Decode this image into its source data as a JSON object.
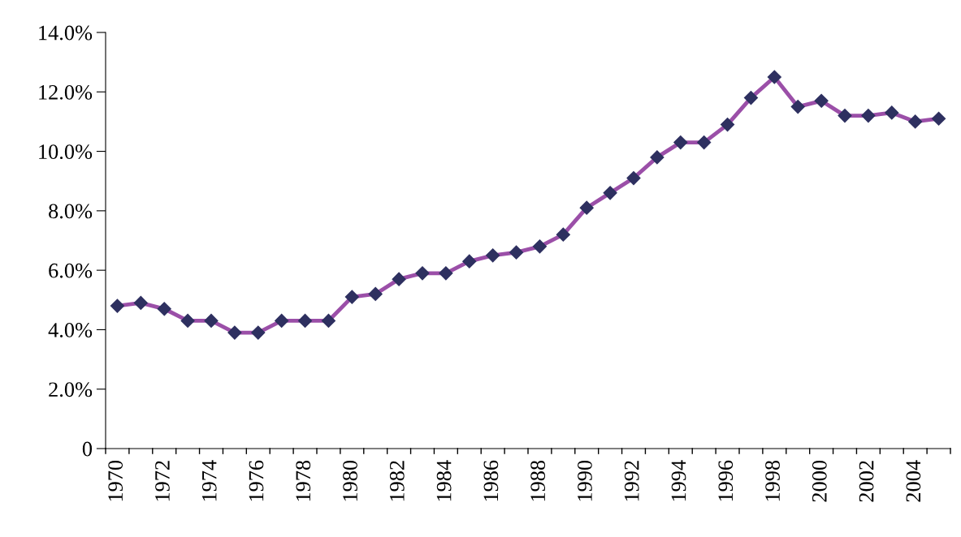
{
  "chart_data": {
    "type": "line",
    "categories": [
      "1970",
      null,
      "1972",
      null,
      "1974",
      null,
      "1976",
      null,
      "1978",
      null,
      "1980",
      null,
      "1982",
      null,
      "1984",
      null,
      "1986",
      null,
      "1988",
      null,
      "1990",
      null,
      "1992",
      null,
      "1994",
      null,
      "1996",
      null,
      "1998",
      null,
      "2000",
      null,
      "2002",
      null,
      "2004",
      null
    ],
    "series": [
      {
        "color": "#9b4fa8",
        "values": [
          4.8,
          4.9,
          4.7,
          4.3,
          4.3,
          3.9,
          3.9,
          4.3,
          4.3,
          4.3,
          5.1,
          5.2,
          5.7,
          5.9,
          5.9,
          6.3,
          6.5,
          6.6,
          6.8,
          7.2,
          8.1,
          8.6,
          9.1,
          9.8,
          10.3,
          10.3,
          10.9,
          11.8,
          12.5,
          11.5,
          11.7,
          11.2,
          11.2,
          11.3,
          11.0,
          11.1
        ]
      }
    ],
    "ylim": [
      0,
      14
    ],
    "yticks": [
      {
        "value": 0,
        "label": "0"
      },
      {
        "value": 2,
        "label": "2.0%"
      },
      {
        "value": 4,
        "label": "4.0%"
      },
      {
        "value": 6,
        "label": "6.0%"
      },
      {
        "value": 8,
        "label": "8.0%"
      },
      {
        "value": 10,
        "label": "10.0%"
      },
      {
        "value": 12,
        "label": "12.0%"
      },
      {
        "value": 14,
        "label": "14.0%"
      }
    ],
    "grid": false,
    "legend": false,
    "marker": "diamond",
    "line_style": "solid"
  }
}
